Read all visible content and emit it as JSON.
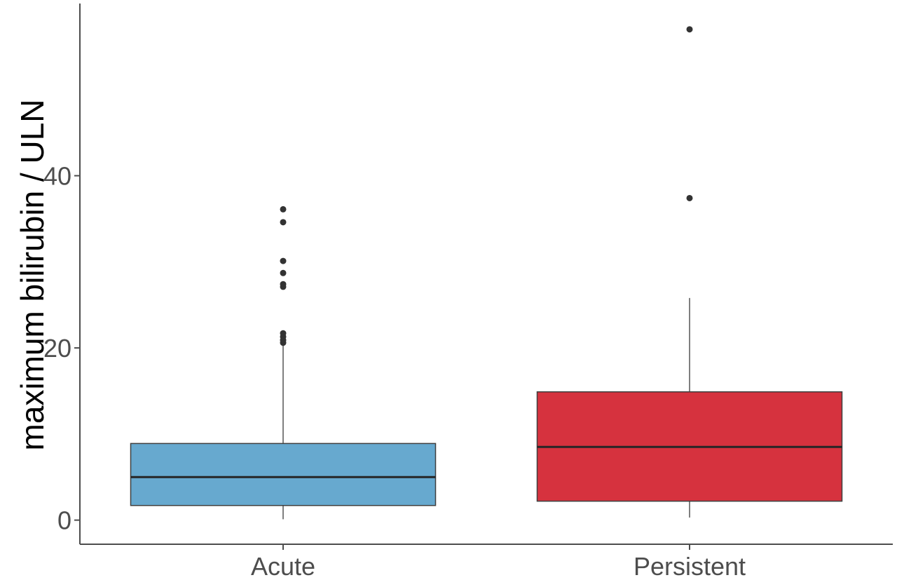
{
  "chart_data": {
    "type": "boxplot",
    "ylabel": "maximum bilirubin / ULN",
    "xlabel": "",
    "ylim": [
      -2.8,
      60
    ],
    "yticks": [
      0,
      20,
      40
    ],
    "grid": false,
    "legend": "none",
    "categories": [
      "Acute",
      "Persistent"
    ],
    "boxes": [
      {
        "category": "Acute",
        "color": "#67a9cf",
        "whisker_low": 0.1,
        "q1": 1.7,
        "median": 5.0,
        "q3": 8.9,
        "whisker_high": 20.4,
        "outliers": [
          20.6,
          20.9,
          21.3,
          21.7,
          27.1,
          27.4,
          28.7,
          30.1,
          34.6,
          36.1
        ]
      },
      {
        "category": "Persistent",
        "color": "#d6323e",
        "whisker_low": 0.3,
        "q1": 2.2,
        "median": 8.5,
        "q3": 14.9,
        "whisker_high": 25.8,
        "outliers": [
          37.4,
          57.0
        ]
      }
    ]
  }
}
